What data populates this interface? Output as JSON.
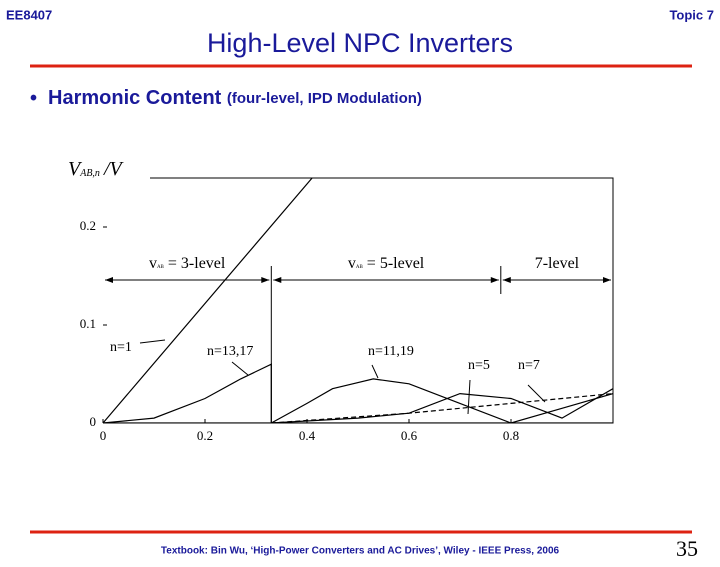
{
  "header": {
    "course": "EE8407",
    "topic": "Topic 7",
    "title": "High-Level NPC Inverters"
  },
  "bullet": {
    "text": "Harmonic Content",
    "note": "(four-level, IPD Modulation)"
  },
  "chart_data": {
    "type": "line",
    "ylabel": {
      "main": "V",
      "sub": "AB,n",
      "rest": "/V"
    },
    "xlim": [
      0,
      1
    ],
    "ylim": [
      0,
      0.25
    ],
    "xticks": [
      0,
      0.2,
      0.4,
      0.6,
      0.8
    ],
    "yticks": [
      0,
      0.1,
      0.2
    ],
    "regions": [
      {
        "main": "v",
        "sub": "AB",
        "rest": "= 3-level",
        "from": 0,
        "to": 0.33
      },
      {
        "main": "v",
        "sub": "AB",
        "rest": "= 5-level",
        "from": 0.33,
        "to": 0.78
      },
      {
        "rest": "7-level",
        "from": 0.78,
        "to": 1
      }
    ],
    "series": [
      {
        "name": "n=1",
        "color": "#000000",
        "line_style": "solid",
        "x": [
          0,
          0.41
        ],
        "values": [
          0,
          0.25
        ]
      },
      {
        "name": "n=13,17",
        "color": "#000000",
        "line_style": "solid",
        "x": [
          0,
          0.1,
          0.2,
          0.27,
          0.33,
          0.33,
          1
        ],
        "values": [
          0,
          0.005,
          0.025,
          0.045,
          0.06,
          0,
          0
        ]
      },
      {
        "name": "n=11,19",
        "color": "#000000",
        "line_style": "solid",
        "x": [
          0,
          0.33,
          0.4,
          0.45,
          0.53,
          0.6,
          0.7,
          0.8,
          0.9,
          1
        ],
        "values": [
          0,
          0,
          0.02,
          0.035,
          0.045,
          0.04,
          0.02,
          0,
          0.015,
          0.03
        ]
      },
      {
        "name": "n=5",
        "color": "#000000",
        "line_style": "solid",
        "x": [
          0.33,
          0.5,
          0.6,
          0.7,
          0.8,
          0.9,
          1
        ],
        "values": [
          0,
          0.005,
          0.01,
          0.03,
          0.025,
          0.005,
          0.035
        ]
      },
      {
        "name": "n=7",
        "color": "#000000",
        "line_style": "dashed",
        "x": [
          0.33,
          0.6,
          0.8,
          1
        ],
        "values": [
          0,
          0.01,
          0.02,
          0.03
        ]
      }
    ]
  },
  "footer": {
    "source": "Textbook: Bin Wu, ‘High-Power Converters and AC Drives’, Wiley - IEEE Press, 2006",
    "page": "35"
  }
}
